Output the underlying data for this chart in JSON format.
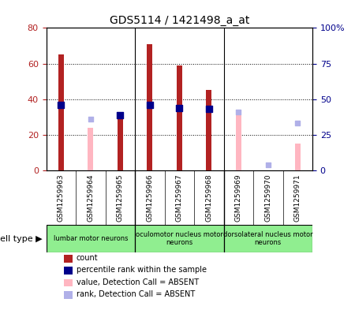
{
  "title": "GDS5114 / 1421498_a_at",
  "samples": [
    "GSM1259963",
    "GSM1259964",
    "GSM1259965",
    "GSM1259966",
    "GSM1259967",
    "GSM1259968",
    "GSM1259969",
    "GSM1259970",
    "GSM1259971"
  ],
  "count_values": [
    65,
    0,
    30,
    71,
    59,
    45,
    0,
    0,
    0
  ],
  "count_absent": [
    0,
    24,
    0,
    0,
    0,
    0,
    31,
    0,
    15
  ],
  "rank_present": [
    46,
    0,
    39,
    46,
    44,
    43,
    0,
    0,
    0
  ],
  "rank_absent": [
    0,
    36,
    0,
    0,
    0,
    0,
    41,
    4,
    33
  ],
  "left_ylim": [
    0,
    80
  ],
  "right_ylim": [
    0,
    100
  ],
  "left_yticks": [
    0,
    20,
    40,
    60,
    80
  ],
  "right_yticks": [
    0,
    25,
    50,
    75,
    100
  ],
  "right_yticklabels": [
    "0",
    "25",
    "50",
    "75",
    "100%"
  ],
  "color_count": "#b22222",
  "color_rank_present": "#00008b",
  "color_count_absent": "#ffb6c1",
  "color_rank_absent": "#b0b0e8",
  "color_bg_plot": "#ffffff",
  "color_label_bg": "#d3d3d3",
  "color_celltype_bg": "#90ee90",
  "color_celltype_bg2": "#32cd32",
  "color_grid": "#000000",
  "cell_type_groups": [
    {
      "label": "lumbar motor neurons",
      "start": 0,
      "end": 3
    },
    {
      "label": "oculomotor nucleus motor\nneurons",
      "start": 3,
      "end": 6
    },
    {
      "label": "dorsolateral nucleus motor\nneurons",
      "start": 6,
      "end": 9
    }
  ],
  "legend_items": [
    {
      "label": "count",
      "color": "#b22222"
    },
    {
      "label": "percentile rank within the sample",
      "color": "#00008b"
    },
    {
      "label": "value, Detection Call = ABSENT",
      "color": "#ffb6c1"
    },
    {
      "label": "rank, Detection Call = ABSENT",
      "color": "#b0b0e8"
    }
  ],
  "bar_width": 0.18,
  "dividers": [
    2.5,
    5.5
  ]
}
